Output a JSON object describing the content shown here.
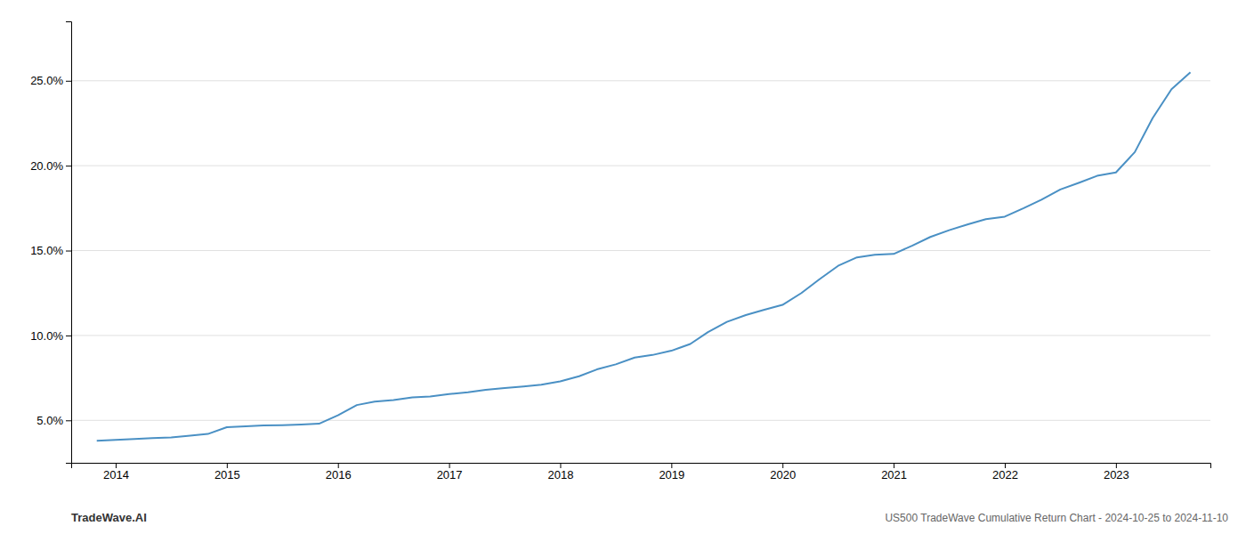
{
  "chart_data": {
    "type": "line",
    "title": "US500 TradeWave Cumulative Return Chart - 2024-10-25 to 2024-11-10",
    "annotations": [
      "TradeWave.AI"
    ],
    "color": "#4a90c4",
    "grid": "y",
    "x": [
      2013.83,
      2014.0,
      2014.17,
      2014.33,
      2014.5,
      2014.67,
      2014.83,
      2015.0,
      2015.17,
      2015.33,
      2015.5,
      2015.67,
      2015.83,
      2016.0,
      2016.17,
      2016.33,
      2016.5,
      2016.67,
      2016.83,
      2017.0,
      2017.17,
      2017.33,
      2017.5,
      2017.67,
      2017.83,
      2018.0,
      2018.17,
      2018.33,
      2018.5,
      2018.67,
      2018.83,
      2019.0,
      2019.17,
      2019.33,
      2019.5,
      2019.67,
      2019.83,
      2020.0,
      2020.17,
      2020.33,
      2020.5,
      2020.67,
      2020.83,
      2021.0,
      2021.17,
      2021.33,
      2021.5,
      2021.67,
      2021.83,
      2022.0,
      2022.17,
      2022.33,
      2022.5,
      2022.67,
      2022.83,
      2023.0,
      2023.17,
      2023.33,
      2023.5,
      2023.67
    ],
    "values": [
      3.8,
      3.85,
      3.9,
      3.95,
      4.0,
      4.1,
      4.2,
      4.6,
      4.65,
      4.7,
      4.72,
      4.75,
      4.8,
      5.3,
      5.9,
      6.1,
      6.2,
      6.35,
      6.4,
      6.55,
      6.65,
      6.8,
      6.9,
      7.0,
      7.1,
      7.3,
      7.6,
      8.0,
      8.3,
      8.7,
      8.85,
      9.1,
      9.5,
      10.2,
      10.8,
      11.2,
      11.5,
      11.8,
      12.5,
      13.3,
      14.1,
      14.6,
      14.75,
      14.8,
      15.3,
      15.8,
      16.2,
      16.55,
      16.85,
      17.0,
      17.5,
      18.0,
      18.6,
      19.0,
      19.4,
      19.6,
      20.8,
      22.8,
      24.5,
      25.5
    ],
    "xlim": [
      2013.6,
      2023.85
    ],
    "xticks": [
      2014,
      2015,
      2016,
      2017,
      2018,
      2019,
      2020,
      2021,
      2022,
      2023
    ],
    "ylim": [
      2.5,
      28.5
    ],
    "yticks": [
      {
        "value": 5.0,
        "label": "5.0%"
      },
      {
        "value": 10.0,
        "label": "10.0%"
      },
      {
        "value": 15.0,
        "label": "15.0%"
      },
      {
        "value": 20.0,
        "label": "20.0%"
      },
      {
        "value": 25.0,
        "label": "25.0%"
      }
    ]
  }
}
